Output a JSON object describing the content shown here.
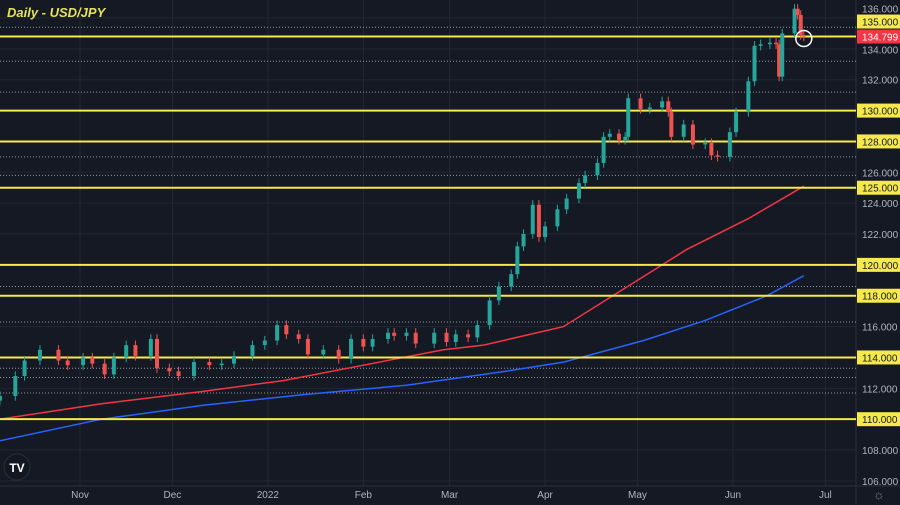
{
  "chart_data": {
    "type": "candlestick",
    "title": "Daily - USD/JPY",
    "ylim": [
      105.5,
      137
    ],
    "xlim": [
      "2021-10-06",
      "2022-07-10"
    ],
    "y_ticks": [
      106,
      108,
      110,
      112,
      114,
      116,
      118,
      120,
      122,
      124,
      126,
      128,
      130,
      132,
      134,
      136
    ],
    "x_ticks": [
      {
        "label": "Nov",
        "date": "2021-11-01"
      },
      {
        "label": "Dec",
        "date": "2021-12-01"
      },
      {
        "label": "2022",
        "date": "2022-01-01"
      },
      {
        "label": "Feb",
        "date": "2022-02-01"
      },
      {
        "label": "Mar",
        "date": "2022-03-01"
      },
      {
        "label": "Apr",
        "date": "2022-04-01"
      },
      {
        "label": "May",
        "date": "2022-05-01"
      },
      {
        "label": "Jun",
        "date": "2022-06-01"
      },
      {
        "label": "Jul",
        "date": "2022-07-01"
      }
    ],
    "grid": true,
    "closes": [
      [
        "2021-10-06",
        111.5
      ],
      [
        "2021-10-11",
        112.8
      ],
      [
        "2021-10-14",
        113.8
      ],
      [
        "2021-10-19",
        114.5
      ],
      [
        "2021-10-25",
        113.8
      ],
      [
        "2021-10-28",
        113.5
      ],
      [
        "2021-11-02",
        114.0
      ],
      [
        "2021-11-05",
        113.6
      ],
      [
        "2021-11-09",
        112.9
      ],
      [
        "2021-11-12",
        114.0
      ],
      [
        "2021-11-16",
        114.8
      ],
      [
        "2021-11-19",
        114.1
      ],
      [
        "2021-11-24",
        115.2
      ],
      [
        "2021-11-26",
        113.3
      ],
      [
        "2021-11-30",
        113.1
      ],
      [
        "2021-12-03",
        112.8
      ],
      [
        "2021-12-08",
        113.7
      ],
      [
        "2021-12-13",
        113.5
      ],
      [
        "2021-12-17",
        113.6
      ],
      [
        "2021-12-21",
        114.1
      ],
      [
        "2021-12-27",
        114.8
      ],
      [
        "2021-12-31",
        115.1
      ],
      [
        "2022-01-04",
        116.1
      ],
      [
        "2022-01-07",
        115.5
      ],
      [
        "2022-01-11",
        115.2
      ],
      [
        "2022-01-14",
        114.2
      ],
      [
        "2022-01-19",
        114.5
      ],
      [
        "2022-01-24",
        113.9
      ],
      [
        "2022-01-28",
        115.2
      ],
      [
        "2022-02-01",
        114.7
      ],
      [
        "2022-02-04",
        115.2
      ],
      [
        "2022-02-09",
        115.6
      ],
      [
        "2022-02-11",
        115.4
      ],
      [
        "2022-02-15",
        115.6
      ],
      [
        "2022-02-18",
        114.9
      ],
      [
        "2022-02-24",
        115.6
      ],
      [
        "2022-02-28",
        115.0
      ],
      [
        "2022-03-03",
        115.5
      ],
      [
        "2022-03-07",
        115.3
      ],
      [
        "2022-03-10",
        116.1
      ],
      [
        "2022-03-14",
        117.7
      ],
      [
        "2022-03-17",
        118.6
      ],
      [
        "2022-03-21",
        119.4
      ],
      [
        "2022-03-23",
        121.2
      ],
      [
        "2022-03-25",
        122.0
      ],
      [
        "2022-03-28",
        123.9
      ],
      [
        "2022-03-30",
        121.8
      ],
      [
        "2022-04-01",
        122.5
      ],
      [
        "2022-04-05",
        123.6
      ],
      [
        "2022-04-08",
        124.3
      ],
      [
        "2022-04-12",
        125.3
      ],
      [
        "2022-04-14",
        125.8
      ],
      [
        "2022-04-18",
        126.6
      ],
      [
        "2022-04-20",
        128.3
      ],
      [
        "2022-04-22",
        128.5
      ],
      [
        "2022-04-25",
        128.1
      ],
      [
        "2022-04-27",
        128.3
      ],
      [
        "2022-04-28",
        130.8
      ],
      [
        "2022-05-02",
        130.1
      ],
      [
        "2022-05-05",
        130.2
      ],
      [
        "2022-05-09",
        130.6
      ],
      [
        "2022-05-11",
        129.9
      ],
      [
        "2022-05-12",
        128.3
      ],
      [
        "2022-05-16",
        129.1
      ],
      [
        "2022-05-19",
        127.8
      ],
      [
        "2022-05-23",
        127.9
      ],
      [
        "2022-05-25",
        127.1
      ],
      [
        "2022-05-27",
        127.0
      ],
      [
        "2022-05-31",
        128.6
      ],
      [
        "2022-06-02",
        129.9
      ],
      [
        "2022-06-06",
        131.9
      ],
      [
        "2022-06-08",
        134.2
      ],
      [
        "2022-06-10",
        134.3
      ],
      [
        "2022-06-13",
        134.4
      ],
      [
        "2022-06-15",
        134.3
      ],
      [
        "2022-06-16",
        132.2
      ],
      [
        "2022-06-17",
        135.0
      ],
      [
        "2022-06-21",
        136.6
      ],
      [
        "2022-06-22",
        136.2
      ],
      [
        "2022-06-23",
        134.9
      ],
      [
        "2022-06-24",
        134.8
      ]
    ],
    "moving_averages": [
      {
        "color": "#f23645",
        "points": [
          [
            "2021-10-06",
            110.0
          ],
          [
            "2021-11-08",
            111.0
          ],
          [
            "2021-12-11",
            111.8
          ],
          [
            "2022-01-06",
            112.5
          ],
          [
            "2022-02-01",
            113.5
          ],
          [
            "2022-02-27",
            114.5
          ],
          [
            "2022-03-12",
            114.8
          ],
          [
            "2022-04-07",
            116.0
          ],
          [
            "2022-04-27",
            118.5
          ],
          [
            "2022-05-17",
            121.0
          ],
          [
            "2022-06-06",
            123.0
          ],
          [
            "2022-06-24",
            125.1
          ]
        ]
      },
      {
        "color": "#2962ff",
        "points": [
          [
            "2021-10-06",
            108.6
          ],
          [
            "2021-11-08",
            110.0
          ],
          [
            "2021-12-11",
            110.9
          ],
          [
            "2022-01-13",
            111.6
          ],
          [
            "2022-02-15",
            112.2
          ],
          [
            "2022-03-19",
            113.1
          ],
          [
            "2022-04-07",
            113.7
          ],
          [
            "2022-05-03",
            115.1
          ],
          [
            "2022-05-23",
            116.4
          ],
          [
            "2022-06-12",
            118.0
          ],
          [
            "2022-06-24",
            119.3
          ]
        ]
      }
    ],
    "horizontal_levels": [
      134.8,
      130,
      128,
      125,
      120,
      118,
      114,
      110
    ],
    "dotted_levels": [
      135.4,
      133.2,
      131.2,
      127.0,
      125.8,
      118.6,
      116.3,
      113.3,
      112.7,
      111.7
    ],
    "price_labels": [
      {
        "text": "135.000",
        "value": 135,
        "color": "#f5e94c"
      },
      {
        "text": "134.799",
        "value": 134.799,
        "color": "#f23645"
      },
      {
        "text": "130.000",
        "value": 130,
        "color": "#f5e94c"
      },
      {
        "text": "128.000",
        "value": 128,
        "color": "#f5e94c"
      },
      {
        "text": "125.000",
        "value": 125,
        "color": "#f5e94c"
      },
      {
        "text": "120.000",
        "value": 120,
        "color": "#f5e94c"
      },
      {
        "text": "118.000",
        "value": 118,
        "color": "#f5e94c"
      },
      {
        "text": "114.000",
        "value": 114,
        "color": "#f5e94c"
      },
      {
        "text": "110.000",
        "value": 110,
        "color": "#f5e94c"
      }
    ],
    "colors": {
      "up": "#26a69a",
      "down": "#ef5350",
      "level": "#f5e94c",
      "background": "#151924"
    }
  }
}
